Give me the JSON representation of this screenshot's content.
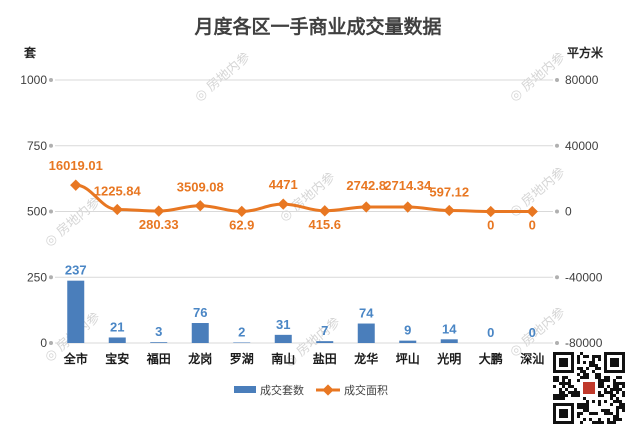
{
  "chart_data": {
    "type": "bar+line",
    "title": "月度各区一手商业成交量数据",
    "left_axis_unit": "套",
    "right_axis_unit": "平方米",
    "left_ticks": [
      "0",
      "250",
      "500",
      "750",
      "1000"
    ],
    "left_ylim": [
      0,
      1000
    ],
    "right_ticks": [
      "-80000",
      "-40000",
      "0",
      "40000",
      "80000"
    ],
    "right_ylim": [
      -80000,
      80000
    ],
    "categories": [
      "全市",
      "宝安",
      "福田",
      "龙岗",
      "罗湖",
      "南山",
      "盐田",
      "龙华",
      "坪山",
      "光明",
      "大鹏",
      "深汕"
    ],
    "series": [
      {
        "name": "成交套数",
        "kind": "bar",
        "axis": "left",
        "color": "#4a7ebb",
        "values": [
          237,
          21,
          3,
          76,
          2,
          31,
          7,
          74,
          9,
          14,
          0,
          0
        ],
        "labels": [
          "237",
          "21",
          "3",
          "76",
          "2",
          "31",
          "7",
          "74",
          "9",
          "14",
          "0",
          "0"
        ]
      },
      {
        "name": "成交面积",
        "kind": "line",
        "axis": "right",
        "color": "#e87722",
        "values": [
          16019.01,
          1225.84,
          280.33,
          3509.08,
          62.9,
          4471,
          415.6,
          2742.8,
          2714.34,
          597.12,
          0,
          0
        ],
        "labels": [
          "16019.01",
          "1225.84",
          "280.33",
          "3509.08",
          "62.9",
          "4471",
          "415.6",
          "2742.8",
          "2714.34",
          "597.12",
          "0",
          "0"
        ]
      }
    ],
    "gridlines": true,
    "legend_position": "bottom"
  },
  "watermark": "房地内参",
  "colors": {
    "bar": "#4a7ebb",
    "line": "#e87722",
    "grid": "#d9d9d9"
  }
}
